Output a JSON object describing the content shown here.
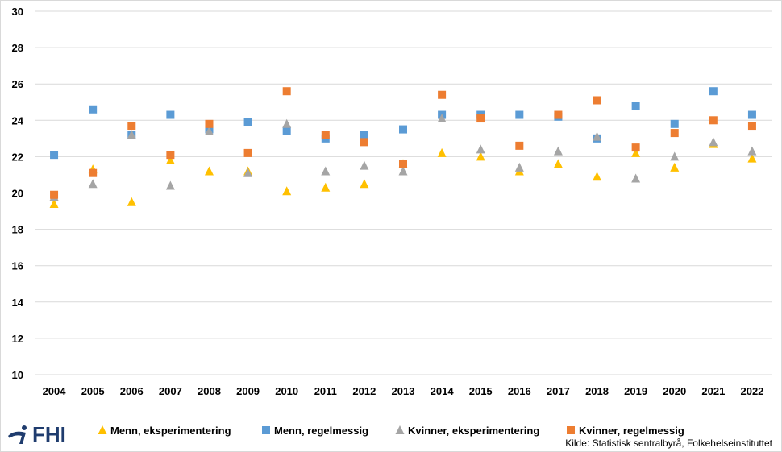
{
  "chart_data": {
    "type": "scatter",
    "categories": [
      "2004",
      "2005",
      "2006",
      "2007",
      "2008",
      "2009",
      "2010",
      "2011",
      "2012",
      "2013",
      "2014",
      "2015",
      "2016",
      "2017",
      "2018",
      "2019",
      "2020",
      "2021",
      "2022"
    ],
    "ylim": [
      10,
      30
    ],
    "yticks": [
      10,
      12,
      14,
      16,
      18,
      20,
      22,
      24,
      26,
      28,
      30
    ],
    "grid": "horizontal",
    "legend_position": "bottom",
    "series": [
      {
        "name": "Menn, eksperimentering",
        "marker": "triangle",
        "color": "#ffc000",
        "values": [
          19.4,
          21.3,
          19.5,
          21.8,
          21.2,
          21.2,
          20.1,
          20.3,
          20.5,
          21.6,
          22.2,
          22.0,
          21.2,
          21.6,
          20.9,
          22.2,
          21.4,
          22.7,
          21.9
        ]
      },
      {
        "name": "Menn, regelmessig",
        "marker": "square",
        "color": "#5b9bd5",
        "values": [
          22.1,
          24.6,
          23.2,
          24.3,
          23.5,
          23.9,
          23.4,
          23.0,
          23.2,
          23.5,
          24.3,
          24.3,
          24.3,
          24.2,
          23.0,
          24.8,
          23.8,
          25.6,
          24.3
        ]
      },
      {
        "name": "Kvinner, eksperimentering",
        "marker": "triangle",
        "color": "#a5a5a5",
        "values": [
          19.8,
          20.5,
          23.2,
          20.4,
          23.4,
          21.1,
          23.8,
          21.2,
          21.5,
          21.2,
          24.1,
          22.4,
          21.4,
          22.3,
          23.1,
          20.8,
          22.0,
          22.8,
          22.3
        ]
      },
      {
        "name": "Kvinner, regelmessig",
        "marker": "square",
        "color": "#ed7d31",
        "values": [
          19.9,
          21.1,
          23.7,
          22.1,
          23.8,
          22.2,
          25.6,
          23.2,
          22.8,
          21.6,
          25.4,
          24.1,
          22.6,
          24.3,
          25.1,
          22.5,
          23.3,
          24.0,
          23.7
        ]
      }
    ]
  },
  "footer": {
    "logo_text": "FHI",
    "source": "Kilde: Statistisk sentralbyrå, Folkehelseinstituttet"
  }
}
